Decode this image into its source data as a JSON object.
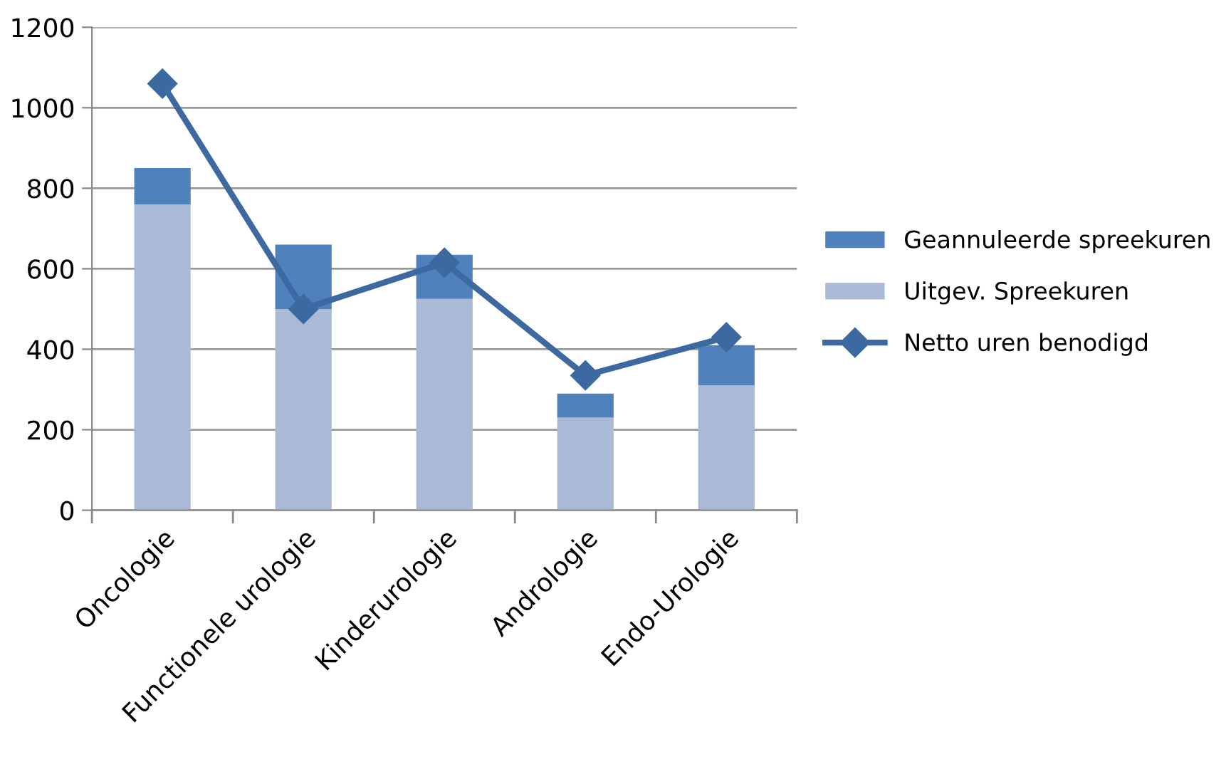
{
  "chart_data": {
    "type": "bar",
    "stacked": true,
    "categories": [
      "Oncologie",
      "Functionele urologie",
      "Kinderurologie",
      "Andrologie",
      "Endo-Urologie"
    ],
    "series": [
      {
        "name": "Uitgev. Spreekuren",
        "color": "#aab9d6",
        "values": [
          760,
          500,
          525,
          230,
          310
        ]
      },
      {
        "name": "Geannuleerde spreekuren",
        "color": "#4f81bd",
        "values": [
          90,
          160,
          110,
          60,
          100
        ]
      },
      {
        "name": "Netto uren benodigd",
        "type": "line",
        "color": "#3c69a0",
        "marker": "diamond",
        "line_style": "solid",
        "values": [
          1060,
          500,
          615,
          335,
          430
        ]
      }
    ],
    "ylim": [
      0,
      1200
    ],
    "yticks": [
      0,
      200,
      400,
      600,
      800,
      1000,
      1200
    ],
    "grid": "y",
    "legend": "right"
  }
}
